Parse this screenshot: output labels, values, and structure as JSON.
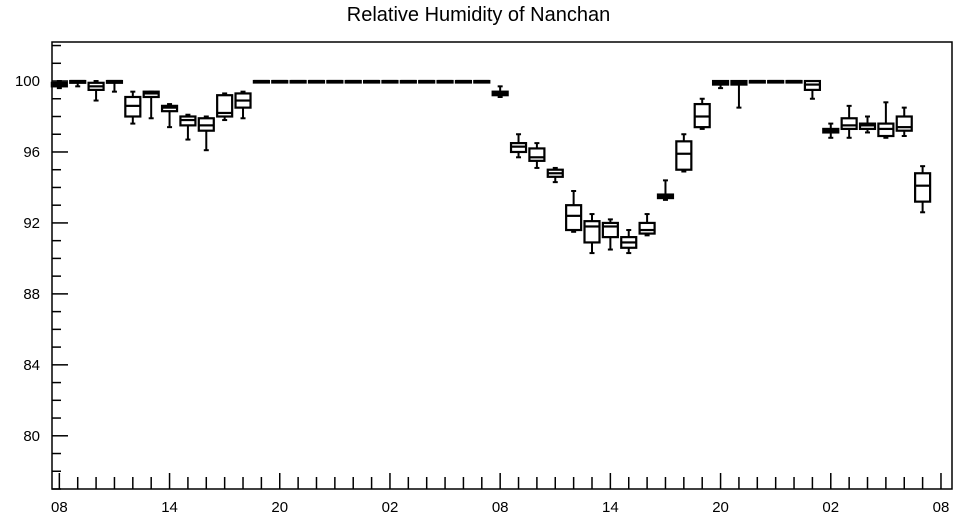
{
  "chart_data": {
    "type": "box",
    "title": "Relative Humidity of Nanchan",
    "xlabel": "",
    "ylabel": "",
    "ylim": [
      77,
      102.2
    ],
    "xlim": [
      -0.4,
      48.6
    ],
    "yticks": [
      80,
      84,
      88,
      92,
      96,
      100
    ],
    "ytick_labels": [
      "80",
      "84",
      "88",
      "92",
      "96",
      "100"
    ],
    "xticks": [
      0,
      6,
      12,
      18,
      24,
      30,
      36,
      42,
      48
    ],
    "xtick_labels": [
      "08",
      "14",
      "20",
      "02",
      "08",
      "14",
      "20",
      "02",
      "08"
    ],
    "grid": false,
    "color": "#000000",
    "boxes": [
      {
        "x": 0,
        "min": 99.6,
        "q1": 99.7,
        "median": 99.8,
        "q3": 99.9,
        "max": 100.0
      },
      {
        "x": 1,
        "min": 99.7,
        "q1": 99.9,
        "median": 100.0,
        "q3": 100.0,
        "max": 100.0
      },
      {
        "x": 2,
        "min": 98.9,
        "q1": 99.5,
        "median": 99.7,
        "q3": 99.9,
        "max": 100.0
      },
      {
        "x": 3,
        "min": 99.4,
        "q1": 99.9,
        "median": 100.0,
        "q3": 100.0,
        "max": 100.0
      },
      {
        "x": 4,
        "min": 97.6,
        "q1": 98.0,
        "median": 98.6,
        "q3": 99.1,
        "max": 99.4
      },
      {
        "x": 5,
        "min": 97.9,
        "q1": 99.1,
        "median": 99.3,
        "q3": 99.4,
        "max": 99.4
      },
      {
        "x": 6,
        "min": 97.4,
        "q1": 98.3,
        "median": 98.5,
        "q3": 98.6,
        "max": 98.7
      },
      {
        "x": 7,
        "min": 96.7,
        "q1": 97.5,
        "median": 97.8,
        "q3": 98.0,
        "max": 98.1
      },
      {
        "x": 8,
        "min": 96.1,
        "q1": 97.2,
        "median": 97.5,
        "q3": 97.9,
        "max": 98.0
      },
      {
        "x": 9,
        "min": 97.8,
        "q1": 98.0,
        "median": 98.2,
        "q3": 99.2,
        "max": 99.3
      },
      {
        "x": 10,
        "min": 97.9,
        "q1": 98.5,
        "median": 98.9,
        "q3": 99.3,
        "max": 99.4
      },
      {
        "x": 11,
        "min": 100.0,
        "q1": 100.0,
        "median": 100.0,
        "q3": 100.0,
        "max": 100.0
      },
      {
        "x": 12,
        "min": 100.0,
        "q1": 100.0,
        "median": 100.0,
        "q3": 100.0,
        "max": 100.0
      },
      {
        "x": 13,
        "min": 100.0,
        "q1": 100.0,
        "median": 100.0,
        "q3": 100.0,
        "max": 100.0
      },
      {
        "x": 14,
        "min": 100.0,
        "q1": 100.0,
        "median": 100.0,
        "q3": 100.0,
        "max": 100.0
      },
      {
        "x": 15,
        "min": 100.0,
        "q1": 100.0,
        "median": 100.0,
        "q3": 100.0,
        "max": 100.0
      },
      {
        "x": 16,
        "min": 100.0,
        "q1": 100.0,
        "median": 100.0,
        "q3": 100.0,
        "max": 100.0
      },
      {
        "x": 17,
        "min": 100.0,
        "q1": 100.0,
        "median": 100.0,
        "q3": 100.0,
        "max": 100.0
      },
      {
        "x": 18,
        "min": 100.0,
        "q1": 100.0,
        "median": 100.0,
        "q3": 100.0,
        "max": 100.0
      },
      {
        "x": 19,
        "min": 100.0,
        "q1": 100.0,
        "median": 100.0,
        "q3": 100.0,
        "max": 100.0
      },
      {
        "x": 20,
        "min": 100.0,
        "q1": 100.0,
        "median": 100.0,
        "q3": 100.0,
        "max": 100.0
      },
      {
        "x": 21,
        "min": 100.0,
        "q1": 100.0,
        "median": 100.0,
        "q3": 100.0,
        "max": 100.0
      },
      {
        "x": 22,
        "min": 100.0,
        "q1": 100.0,
        "median": 100.0,
        "q3": 100.0,
        "max": 100.0
      },
      {
        "x": 23,
        "min": 100.0,
        "q1": 100.0,
        "median": 100.0,
        "q3": 100.0,
        "max": 100.0
      },
      {
        "x": 24,
        "min": 99.1,
        "q1": 99.2,
        "median": 99.3,
        "q3": 99.4,
        "max": 99.7
      },
      {
        "x": 25,
        "min": 95.7,
        "q1": 96.0,
        "median": 96.3,
        "q3": 96.5,
        "max": 97.0
      },
      {
        "x": 26,
        "min": 95.1,
        "q1": 95.5,
        "median": 95.7,
        "q3": 96.2,
        "max": 96.5
      },
      {
        "x": 27,
        "min": 94.3,
        "q1": 94.6,
        "median": 94.8,
        "q3": 95.0,
        "max": 95.1
      },
      {
        "x": 28,
        "min": 91.5,
        "q1": 91.6,
        "median": 92.4,
        "q3": 93.0,
        "max": 93.8
      },
      {
        "x": 29,
        "min": 90.3,
        "q1": 90.9,
        "median": 91.8,
        "q3": 92.1,
        "max": 92.5
      },
      {
        "x": 30,
        "min": 90.5,
        "q1": 91.2,
        "median": 91.8,
        "q3": 92.0,
        "max": 92.2
      },
      {
        "x": 31,
        "min": 90.3,
        "q1": 90.6,
        "median": 90.9,
        "q3": 91.2,
        "max": 91.6
      },
      {
        "x": 32,
        "min": 91.3,
        "q1": 91.4,
        "median": 91.6,
        "q3": 92.0,
        "max": 92.5
      },
      {
        "x": 33,
        "min": 93.3,
        "q1": 93.4,
        "median": 93.5,
        "q3": 93.6,
        "max": 94.4
      },
      {
        "x": 34,
        "min": 94.9,
        "q1": 95.0,
        "median": 95.9,
        "q3": 96.6,
        "max": 97.0
      },
      {
        "x": 35,
        "min": 97.3,
        "q1": 97.4,
        "median": 98.0,
        "q3": 98.7,
        "max": 99.0
      },
      {
        "x": 36,
        "min": 99.6,
        "q1": 99.8,
        "median": 99.9,
        "q3": 100.0,
        "max": 100.0
      },
      {
        "x": 37,
        "min": 98.5,
        "q1": 99.8,
        "median": 99.9,
        "q3": 100.0,
        "max": 100.0
      },
      {
        "x": 38,
        "min": 100.0,
        "q1": 100.0,
        "median": 100.0,
        "q3": 100.0,
        "max": 100.0
      },
      {
        "x": 39,
        "min": 100.0,
        "q1": 100.0,
        "median": 100.0,
        "q3": 100.0,
        "max": 100.0
      },
      {
        "x": 40,
        "min": 100.0,
        "q1": 100.0,
        "median": 100.0,
        "q3": 100.0,
        "max": 100.0
      },
      {
        "x": 41,
        "min": 99.0,
        "q1": 99.5,
        "median": 99.8,
        "q3": 100.0,
        "max": 100.0
      },
      {
        "x": 42,
        "min": 96.8,
        "q1": 97.1,
        "median": 97.2,
        "q3": 97.3,
        "max": 97.6
      },
      {
        "x": 43,
        "min": 96.8,
        "q1": 97.3,
        "median": 97.5,
        "q3": 97.9,
        "max": 98.6
      },
      {
        "x": 44,
        "min": 97.1,
        "q1": 97.3,
        "median": 97.5,
        "q3": 97.6,
        "max": 98.0
      },
      {
        "x": 45,
        "min": 96.8,
        "q1": 96.9,
        "median": 97.3,
        "q3": 97.6,
        "max": 98.8
      },
      {
        "x": 46,
        "min": 96.9,
        "q1": 97.2,
        "median": 97.4,
        "q3": 98.0,
        "max": 98.5
      },
      {
        "x": 47,
        "min": 92.6,
        "q1": 93.2,
        "median": 94.1,
        "q3": 94.8,
        "max": 95.2
      }
    ]
  }
}
